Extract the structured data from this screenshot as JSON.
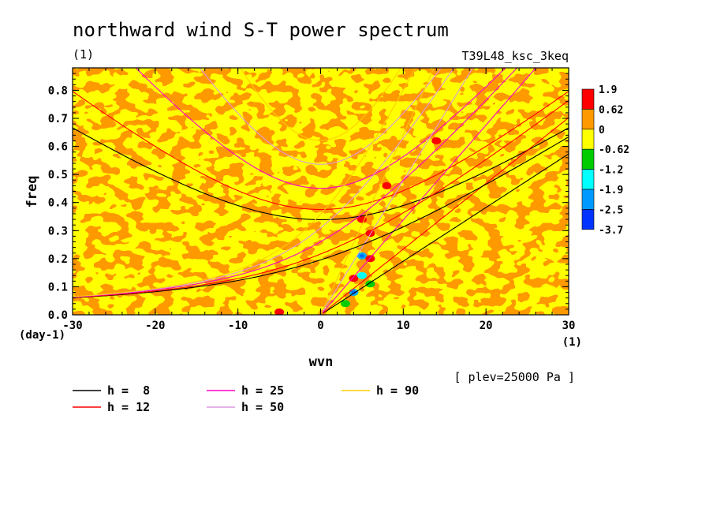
{
  "title": "northward wind S-T power spectrum",
  "units_label": "(1)",
  "experiment": "T39L48_ksc_3keq",
  "note": "[ plev=25000 Pa ]",
  "chart_data": {
    "type": "heatmap",
    "xlabel": "wvn",
    "ylabel": "freq",
    "x_unit": "(1)",
    "y_unit": "(day-1)",
    "xlim": [
      -30,
      30
    ],
    "ylim": [
      0.0,
      0.88
    ],
    "x_ticks": [
      -30,
      -20,
      -10,
      0,
      10,
      20,
      30
    ],
    "x_tick_labels": [
      "-30",
      "-20",
      "-10",
      "0",
      "10",
      "20",
      "30"
    ],
    "y_ticks": [
      0.0,
      0.1,
      0.2,
      0.3,
      0.4,
      0.5,
      0.6,
      0.7,
      0.8
    ],
    "y_tick_labels": [
      "0.0",
      "0.1",
      "0.2",
      "0.3",
      "0.4",
      "0.5",
      "0.6",
      "0.7",
      "0.8"
    ],
    "colorbar": {
      "labels": [
        "1.9",
        "0.62",
        "0",
        "-0.62",
        "-1.2",
        "-1.9",
        "-2.5",
        "-3.7"
      ],
      "colors": [
        "#ff0000",
        "#ff9900",
        "#ffff00",
        "#00cc00",
        "#00ffff",
        "#0099ff",
        "#0033ff"
      ]
    },
    "field_colors": {
      "positive_low": "#ff9900",
      "near_zero": "#ffff00",
      "positive_high": "#ff0000",
      "negative": [
        "#00cc00",
        "#00ffff",
        "#0099ff"
      ]
    },
    "hotspots": [
      {
        "x": 5,
        "y": 0.34,
        "level": "1.9"
      },
      {
        "x": 6,
        "y": 0.29,
        "level": "1.9"
      },
      {
        "x": 4,
        "y": 0.13,
        "level": "1.9"
      },
      {
        "x": 5,
        "y": 0.21,
        "level": "-1.9"
      },
      {
        "x": 5,
        "y": 0.14,
        "level": "-1.2"
      },
      {
        "x": 4,
        "y": 0.08,
        "level": "-1.9"
      },
      {
        "x": 3,
        "y": 0.04,
        "level": "-0.62"
      },
      {
        "x": 6,
        "y": 0.11,
        "level": "-0.62"
      },
      {
        "x": 6,
        "y": 0.2,
        "level": "1.9"
      },
      {
        "x": 8,
        "y": 0.46,
        "level": "1.9"
      },
      {
        "x": 14,
        "y": 0.62,
        "level": "1.9"
      },
      {
        "x": -5,
        "y": 0.01,
        "level": "1.9"
      }
    ],
    "series": [
      {
        "name": "h =  8",
        "color": "#000000"
      },
      {
        "name": "h = 12",
        "color": "#ff0000"
      },
      {
        "name": "h = 25",
        "color": "#ff00cc"
      },
      {
        "name": "h = 50",
        "color": "#dd99dd"
      },
      {
        "name": "h = 90",
        "color": "#ffcc00"
      }
    ],
    "grid": false,
    "legend_position": "bottom-left"
  }
}
